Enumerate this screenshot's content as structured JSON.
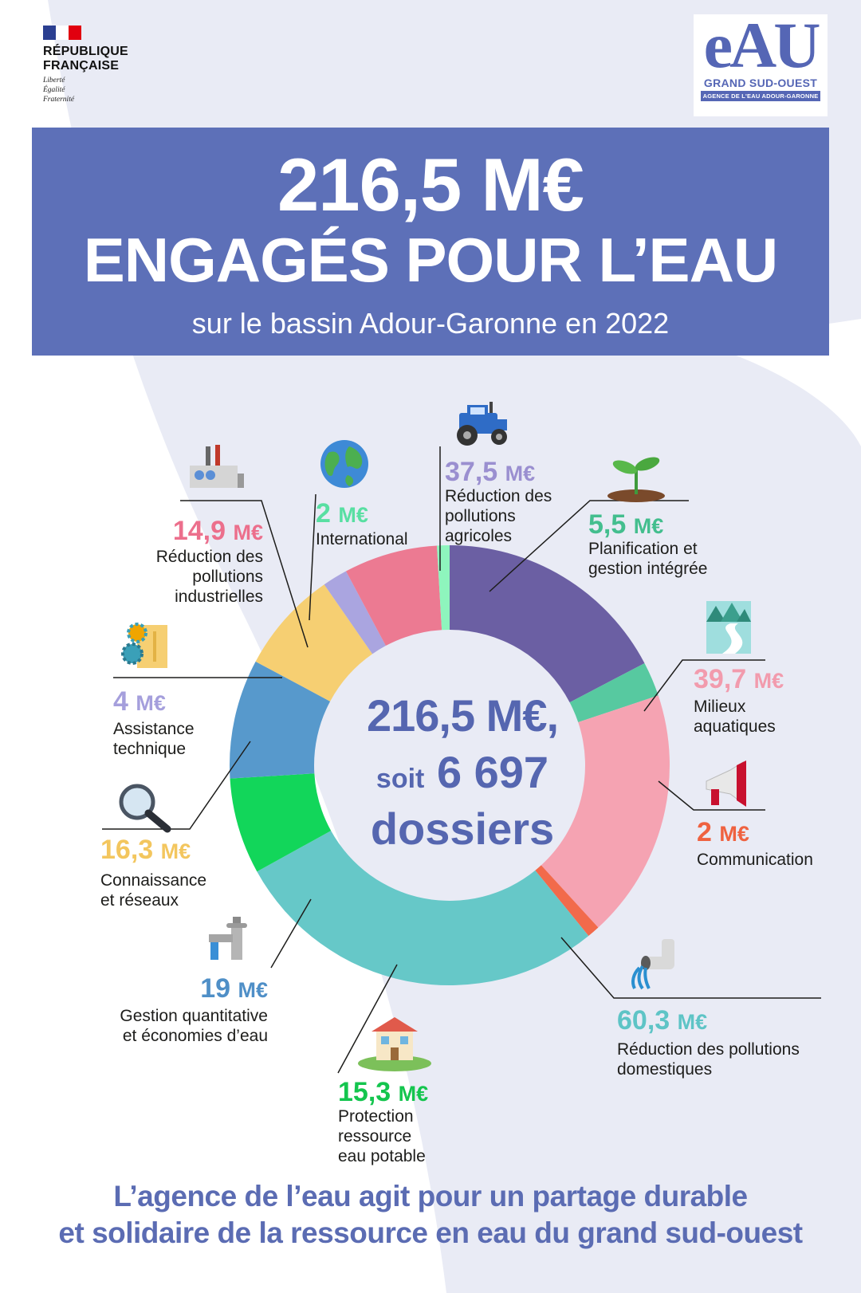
{
  "header": {
    "republique_line1": "RÉPUBLIQUE",
    "republique_line2": "FRANÇAISE",
    "motto": [
      "Liberté",
      "Égalité",
      "Fraternité"
    ],
    "agency_logo": "eAU",
    "agency_name": "GRAND SUD-OUEST",
    "agency_subtitle": "AGENCE DE L'EAU ADOUR-GARONNE"
  },
  "banner": {
    "amount": "216,5 M€",
    "title": "ENGAGÉS POUR L’EAU",
    "subtitle": "sur le bassin Adour-Garonne en 2022"
  },
  "center": {
    "line1": "216,5 M€,",
    "line2_prefix": "soit",
    "line2_number": "6 697",
    "line3": "dossiers"
  },
  "tagline": {
    "line1": "L’agence de l’eau agit pour un  partage durable",
    "line2": "et solidaire de la ressource en eau du grand sud-ouest"
  },
  "colors": {
    "banner": "#5d70b8",
    "background_band": "#e9ebf5"
  },
  "chart_data": {
    "type": "pie",
    "donut": true,
    "unit": "M€",
    "total": 216.5,
    "segments": [
      {
        "key": "agri",
        "value": 37.5,
        "display": "37,5",
        "label": [
          "Réduction des",
          "pollutions",
          "agricoles"
        ],
        "color": "#6b5fa3",
        "text_color": "#9a8fd0",
        "icon": "tractor-icon"
      },
      {
        "key": "plan",
        "value": 5.5,
        "display": "5,5",
        "label": [
          "Planification et",
          "gestion intégrée"
        ],
        "color": "#57c9a0",
        "text_color": "#43be8e",
        "icon": "sprout-icon"
      },
      {
        "key": "milieux",
        "value": 39.7,
        "display": "39,7",
        "label": [
          "Milieux",
          "aquatiques"
        ],
        "color": "#f5a3b2",
        "text_color": "#f29bad",
        "icon": "river-landscape-icon"
      },
      {
        "key": "comm",
        "value": 2,
        "display": "2",
        "label": [
          "Communication"
        ],
        "color": "#f26a4b",
        "text_color": "#ef6240",
        "icon": "megaphone-icon"
      },
      {
        "key": "dom",
        "value": 60.3,
        "display": "60,3",
        "label": [
          "Réduction  des pollutions",
          "domestiques"
        ],
        "color": "#66c8c8",
        "text_color": "#5ec4c6",
        "icon": "drain-pipe-icon"
      },
      {
        "key": "potable",
        "value": 15.3,
        "display": "15,3",
        "label": [
          "Protection",
          "ressource",
          "eau potable"
        ],
        "color": "#12d65a",
        "text_color": "#14c54e",
        "icon": "house-icon"
      },
      {
        "key": "quant",
        "value": 19,
        "display": "19",
        "label": [
          "Gestion quantitative",
          "et économies d’eau"
        ],
        "color": "#5799cc",
        "text_color": "#4f8fc7",
        "icon": "water-tap-icon"
      },
      {
        "key": "conn",
        "value": 16.3,
        "display": "16,3",
        "label": [
          "Connaissance",
          "et réseaux"
        ],
        "color": "#f6cf72",
        "text_color": "#f3c65e",
        "icon": "magnifier-icon"
      },
      {
        "key": "assist",
        "value": 4,
        "display": "4",
        "label": [
          "Assistance",
          "technique"
        ],
        "color": "#aaa5e0",
        "text_color": "#a59fdc",
        "icon": "gears-document-icon"
      },
      {
        "key": "indus",
        "value": 14.9,
        "display": "14,9",
        "label": [
          "Réduction des",
          "pollutions",
          "industrielles"
        ],
        "color": "#ec7a92",
        "text_color": "#ec6f8c",
        "icon": "factory-icon"
      },
      {
        "key": "intl",
        "value": 2,
        "display": "2",
        "label": [
          "International"
        ],
        "color": "#8ef5bd",
        "text_color": "#58dfa2",
        "icon": "globe-icon"
      }
    ]
  }
}
